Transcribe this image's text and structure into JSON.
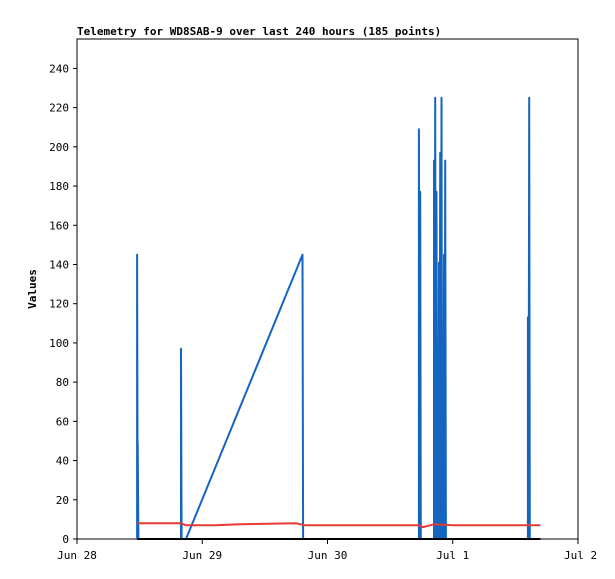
{
  "chart_data": {
    "type": "line",
    "title": "Telemetry for WD8SAB-9 over last 240 hours (185 points)",
    "xlabel": "",
    "ylabel": "Values",
    "ylim": [
      0,
      255
    ],
    "y_ticks": [
      0,
      20,
      40,
      60,
      80,
      100,
      120,
      140,
      160,
      180,
      200,
      220,
      240
    ],
    "xlim": [
      "Jun 28",
      "Jul 2"
    ],
    "x_ticks": [
      {
        "label": "Jun 28",
        "day": 0
      },
      {
        "label": "Jun 29",
        "day": 1
      },
      {
        "label": "Jun 30",
        "day": 2
      },
      {
        "label": "Jul 1",
        "day": 3
      },
      {
        "label": "Jul 2",
        "day": 4
      }
    ],
    "grid": false,
    "legend": "none",
    "series": [
      {
        "color": "#1565c0",
        "points": [
          [
            0.48,
            0
          ],
          [
            0.48,
            145
          ],
          [
            0.485,
            0
          ],
          [
            0.485,
            49
          ],
          [
            0.49,
            0
          ],
          [
            0.83,
            0
          ],
          [
            0.83,
            97
          ],
          [
            0.835,
            0
          ],
          [
            0.87,
            0
          ],
          [
            1.8,
            145
          ],
          [
            1.805,
            0
          ],
          [
            2.73,
            0
          ],
          [
            2.73,
            209
          ],
          [
            2.735,
            0
          ],
          [
            2.74,
            177
          ],
          [
            2.745,
            0
          ],
          [
            2.85,
            0
          ],
          [
            2.85,
            193
          ],
          [
            2.855,
            0
          ],
          [
            2.86,
            225
          ],
          [
            2.865,
            0
          ],
          [
            2.87,
            177
          ],
          [
            2.875,
            0
          ],
          [
            2.88,
            85
          ],
          [
            2.885,
            0
          ],
          [
            2.89,
            141
          ],
          [
            2.895,
            0
          ],
          [
            2.9,
            197
          ],
          [
            2.905,
            0
          ],
          [
            2.91,
            225
          ],
          [
            2.915,
            0
          ],
          [
            2.92,
            49
          ],
          [
            2.925,
            0
          ],
          [
            2.93,
            145
          ],
          [
            2.935,
            0
          ],
          [
            2.94,
            193
          ],
          [
            2.945,
            0
          ],
          [
            3.6,
            0
          ],
          [
            3.6,
            113
          ],
          [
            3.605,
            0
          ],
          [
            3.61,
            225
          ],
          [
            3.615,
            0
          ]
        ]
      },
      {
        "color": "#e53935",
        "points": [
          [
            0.48,
            8
          ],
          [
            0.83,
            8
          ],
          [
            0.87,
            7
          ],
          [
            1.1,
            7
          ],
          [
            1.3,
            7.5
          ],
          [
            1.75,
            8
          ],
          [
            1.82,
            7
          ],
          [
            2.73,
            7
          ],
          [
            2.76,
            6
          ],
          [
            2.85,
            7.5
          ],
          [
            3.0,
            7
          ],
          [
            3.6,
            7
          ],
          [
            3.7,
            7
          ]
        ]
      },
      {
        "color": "#000000",
        "points": [
          [
            0.48,
            0
          ],
          [
            3.7,
            0
          ]
        ]
      }
    ]
  }
}
